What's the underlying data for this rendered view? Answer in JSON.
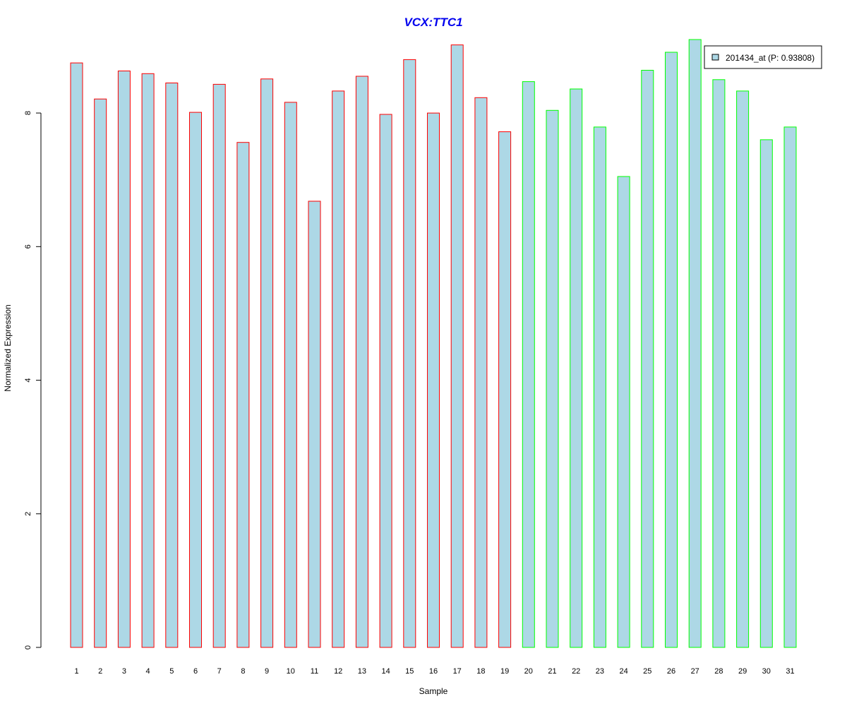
{
  "chart_data": {
    "type": "bar",
    "title": "VCX:TTC1",
    "title_color": "#0000EE",
    "xlabel": "Sample",
    "ylabel": "Normalized Expression",
    "ylim": [
      0,
      9.1
    ],
    "yticks": [
      0,
      2,
      4,
      6,
      8
    ],
    "grid": false,
    "legend_placement": "top-right",
    "fill_color": "#ADD8E6",
    "group_colors": [
      "#FF0000",
      "#00FF00"
    ],
    "categories": [
      "1",
      "2",
      "3",
      "4",
      "5",
      "6",
      "7",
      "8",
      "9",
      "10",
      "11",
      "12",
      "13",
      "14",
      "15",
      "16",
      "17",
      "18",
      "19",
      "20",
      "21",
      "22",
      "23",
      "24",
      "25",
      "26",
      "27",
      "28",
      "29",
      "30",
      "31"
    ],
    "groups": [
      0,
      0,
      0,
      0,
      0,
      0,
      0,
      0,
      0,
      0,
      0,
      0,
      0,
      0,
      0,
      0,
      0,
      0,
      0,
      1,
      1,
      1,
      1,
      1,
      1,
      1,
      1,
      1,
      1,
      1,
      1
    ],
    "series": [
      {
        "name": "201434_at (P: 0.93808)",
        "values": [
          8.75,
          8.21,
          8.63,
          8.59,
          8.45,
          8.01,
          8.43,
          7.56,
          8.51,
          8.16,
          6.68,
          8.33,
          8.55,
          7.98,
          8.8,
          8.0,
          9.02,
          8.23,
          7.72,
          8.47,
          8.04,
          8.36,
          7.79,
          7.05,
          8.64,
          8.91,
          9.1,
          8.5,
          8.33,
          7.6,
          7.79
        ]
      }
    ]
  }
}
